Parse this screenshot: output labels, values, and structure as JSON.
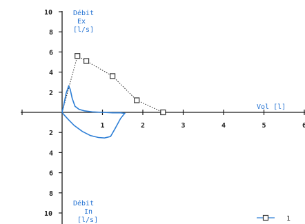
{
  "chart_data": {
    "type": "line",
    "x_label": "Vol [l]",
    "y_top_label": [
      "Débit",
      "Ex",
      "[l/s]"
    ],
    "y_bottom_label": [
      "Débit",
      "In",
      "[l/s]"
    ],
    "xlim": [
      -1,
      6
    ],
    "ylim": [
      -10,
      10
    ],
    "x_ticks": [
      1,
      2,
      3,
      4,
      5,
      6
    ],
    "y_ticks_pos": [
      2,
      4,
      6,
      8,
      10
    ],
    "y_ticks_neg": [
      2,
      4,
      6,
      8,
      10
    ],
    "series": [
      {
        "name": "1",
        "style": "dotted-square",
        "color": "#333333",
        "x": [
          0.0,
          0.38,
          0.6,
          1.25,
          1.85,
          2.5
        ],
        "y": [
          0.0,
          5.6,
          5.1,
          3.6,
          1.2,
          0.0
        ]
      },
      {
        "name": "",
        "style": "solid",
        "color": "#2e7fd6",
        "x": [
          0.0,
          0.05,
          0.1,
          0.16,
          0.2,
          0.25,
          0.32,
          0.42,
          0.55,
          0.75,
          1.0,
          1.25,
          1.45,
          1.55,
          1.45,
          1.3,
          1.2,
          1.05,
          0.9,
          0.7,
          0.5,
          0.3,
          0.15,
          0.05,
          0.0
        ],
        "y": [
          0.0,
          0.9,
          1.9,
          2.6,
          2.3,
          1.4,
          0.6,
          0.3,
          0.15,
          0.05,
          0.0,
          -0.05,
          -0.05,
          -0.1,
          -0.6,
          -1.7,
          -2.4,
          -2.55,
          -2.5,
          -2.3,
          -1.9,
          -1.3,
          -0.7,
          -0.25,
          0.0
        ]
      }
    ],
    "legend": {
      "entries": [
        "1"
      ],
      "placement": "bottom-right"
    }
  }
}
